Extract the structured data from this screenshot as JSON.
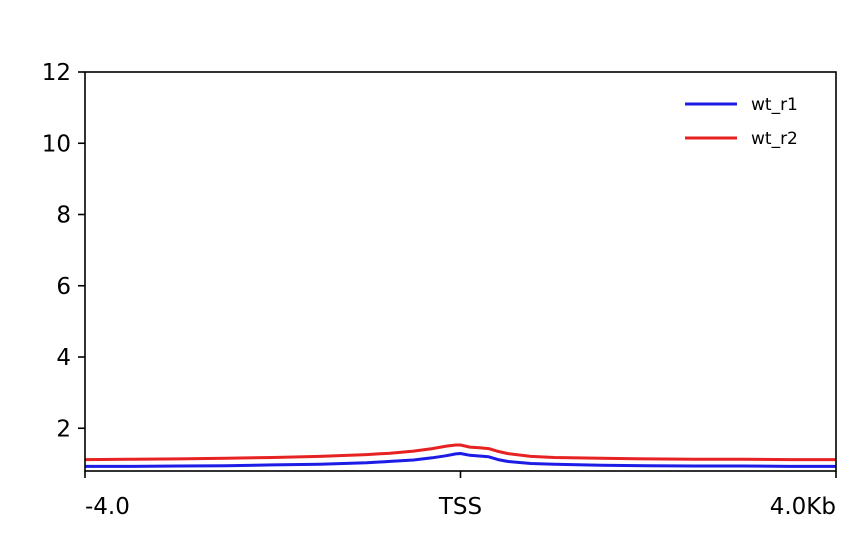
{
  "chart_data": {
    "type": "line",
    "title": "",
    "xlabel": "",
    "ylabel": "",
    "xlim": [
      -4.0,
      4.0
    ],
    "ylim": [
      0.8,
      12
    ],
    "x_ticks": [
      {
        "value": -4.0,
        "label": "-4.0"
      },
      {
        "value": 0.0,
        "label": "TSS"
      },
      {
        "value": 4.0,
        "label": "4.0Kb"
      }
    ],
    "y_ticks": [
      {
        "value": 2,
        "label": "2"
      },
      {
        "value": 4,
        "label": "4"
      },
      {
        "value": 6,
        "label": "6"
      },
      {
        "value": 8,
        "label": "8"
      },
      {
        "value": 10,
        "label": "10"
      },
      {
        "value": 12,
        "label": "12"
      }
    ],
    "legend": {
      "position": "top-right",
      "frame": false
    },
    "grid": false,
    "series": [
      {
        "name": "wt_r1",
        "color": "#1c1ce6",
        "x": [
          -4.0,
          -3.5,
          -3.0,
          -2.5,
          -2.0,
          -1.5,
          -1.0,
          -0.75,
          -0.5,
          -0.3,
          -0.15,
          -0.05,
          0.0,
          0.1,
          0.2,
          0.3,
          0.4,
          0.5,
          0.75,
          1.0,
          1.5,
          2.0,
          2.5,
          3.0,
          3.5,
          4.0
        ],
        "values": [
          0.93,
          0.93,
          0.94,
          0.95,
          0.97,
          0.99,
          1.03,
          1.07,
          1.11,
          1.17,
          1.23,
          1.28,
          1.29,
          1.24,
          1.22,
          1.2,
          1.12,
          1.07,
          1.01,
          0.99,
          0.96,
          0.95,
          0.94,
          0.94,
          0.93,
          0.93
        ]
      },
      {
        "name": "wt_r2",
        "color": "#e62222",
        "x": [
          -4.0,
          -3.5,
          -3.0,
          -2.5,
          -2.0,
          -1.5,
          -1.0,
          -0.75,
          -0.5,
          -0.3,
          -0.15,
          -0.05,
          0.0,
          0.1,
          0.2,
          0.3,
          0.4,
          0.5,
          0.75,
          1.0,
          1.5,
          2.0,
          2.5,
          3.0,
          3.5,
          4.0
        ],
        "values": [
          1.12,
          1.13,
          1.14,
          1.16,
          1.18,
          1.21,
          1.26,
          1.3,
          1.36,
          1.43,
          1.5,
          1.53,
          1.53,
          1.47,
          1.45,
          1.43,
          1.35,
          1.29,
          1.21,
          1.18,
          1.16,
          1.14,
          1.13,
          1.13,
          1.12,
          1.12
        ]
      }
    ]
  }
}
